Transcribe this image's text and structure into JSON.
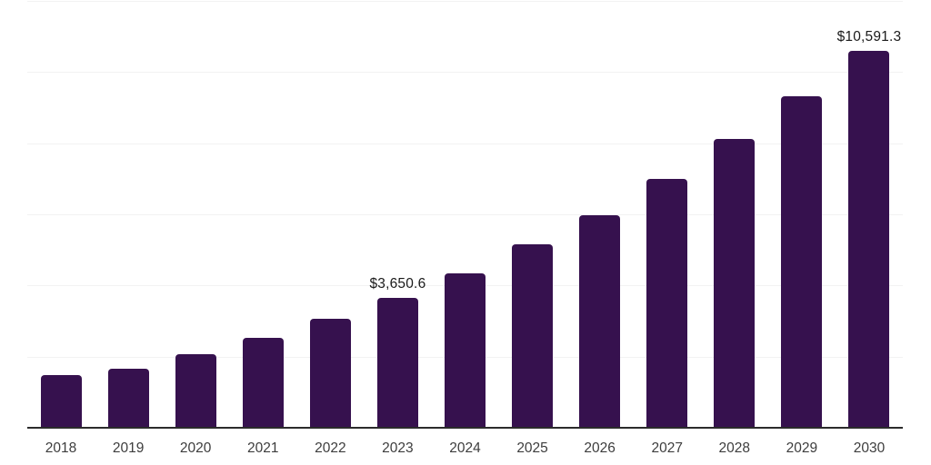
{
  "chart_data": {
    "type": "bar",
    "title": "",
    "xlabel": "",
    "ylabel": "",
    "categories": [
      "2018",
      "2019",
      "2020",
      "2021",
      "2022",
      "2023",
      "2024",
      "2025",
      "2026",
      "2027",
      "2028",
      "2029",
      "2030"
    ],
    "values": [
      1480,
      1665,
      2075,
      2525,
      3070,
      3650.6,
      4345,
      5160,
      5985,
      6990,
      8110,
      9320,
      10591.3
    ],
    "data_labels": {
      "2023": "$3,650.6",
      "2030": "$10,591.3"
    },
    "ylim": [
      0,
      12000
    ],
    "gridline_interval": 2000,
    "grid": true,
    "legend": false,
    "y_tick_labels_visible": false
  },
  "colors": {
    "bar": "#36114E",
    "axis_line": "#2B2B2B",
    "gridline": "#F2F2F2",
    "data_label": "#1A1A1A",
    "tick_label": "#3D3D3D",
    "background": "#FFFFFF"
  }
}
